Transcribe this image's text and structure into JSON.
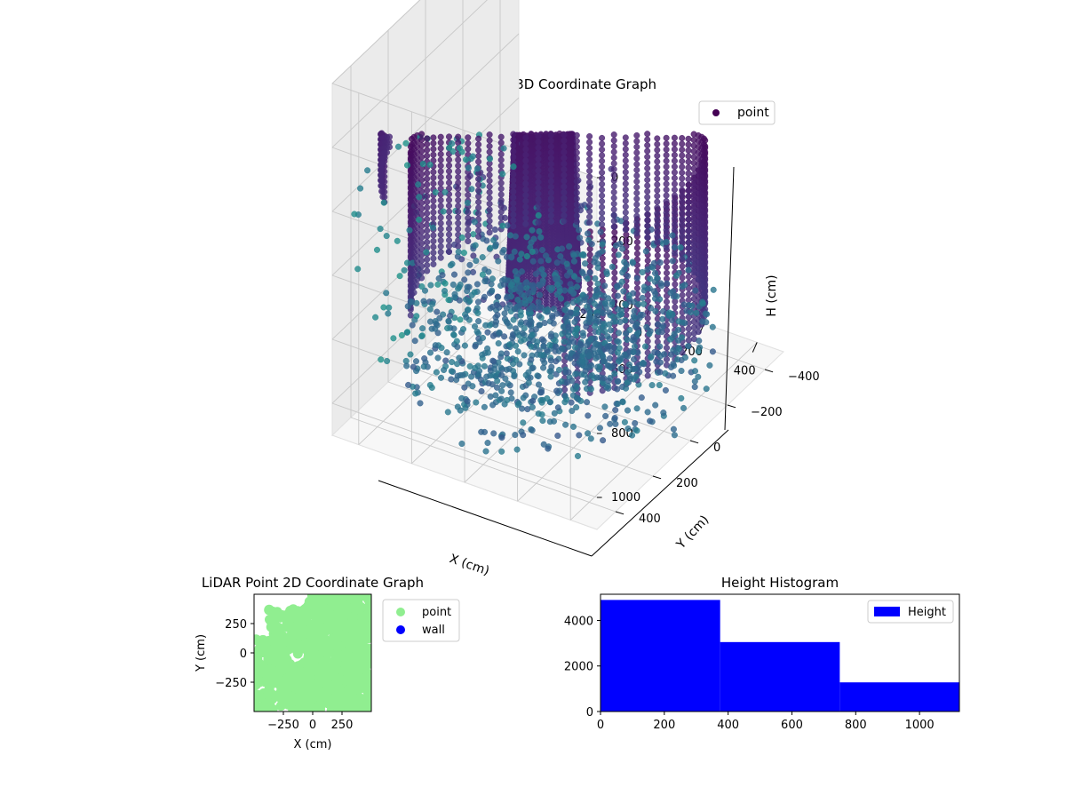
{
  "chart_data": [
    {
      "type": "scatter3d",
      "title": "LiDAR Point 3D Coordinate Graph",
      "xlabel": "X (cm)",
      "ylabel": "Y (cm)",
      "zlabel": "H (cm)",
      "xlim": [
        -500,
        500
      ],
      "ylim": [
        -500,
        500
      ],
      "zlim": [
        0,
        1100
      ],
      "z_inverted": true,
      "x_ticks": [
        -400,
        -200,
        0,
        200,
        400
      ],
      "y_ticks": [
        -400,
        -200,
        0,
        200,
        400
      ],
      "z_ticks": [
        0,
        200,
        400,
        600,
        800,
        1000
      ],
      "x_tick_labels": [
        "−400",
        "−200",
        "0",
        "200",
        "400"
      ],
      "y_tick_labels": [
        "−400",
        "−200",
        "0",
        "200",
        "400"
      ],
      "z_tick_labels": [
        "0",
        "200",
        "400",
        "600",
        "800",
        "1000"
      ],
      "grid": true,
      "legend_position": "top-right",
      "series": [
        {
          "name": "point",
          "colormap": "viridis",
          "marker_color": "#440154",
          "structures": {
            "wall": {
              "angle_from_deg": -55,
              "angle_to_deg": 215,
              "radius": 470,
              "h_top": 330,
              "h_bottom": 850
            },
            "column": {
              "cx": 30,
              "cy": 120,
              "radius_top": 80,
              "radius_bottom": 110,
              "h_top": 0,
              "h_bottom": 700
            },
            "floor": {
              "h_from": 780,
              "h_to": 1050
            }
          }
        }
      ]
    },
    {
      "type": "scatter",
      "title": "LiDAR Point 2D Coordinate Graph",
      "xlabel": "X (cm)",
      "ylabel": "Y (cm)",
      "xlim": [
        -500,
        500
      ],
      "ylim": [
        -500,
        500
      ],
      "x_ticks": [
        -250,
        0,
        250
      ],
      "y_ticks": [
        -250,
        0,
        250
      ],
      "x_tick_labels": [
        "−250",
        "0",
        "250"
      ],
      "y_tick_labels": [
        "−250",
        "0",
        "250"
      ],
      "legend_position": "outside-right",
      "series": [
        {
          "name": "point",
          "color": "#90ee90"
        },
        {
          "name": "wall",
          "color": "#0000ff"
        }
      ]
    },
    {
      "type": "histogram",
      "title": "Height Histogram",
      "xlim": [
        0,
        1125
      ],
      "ylim": [
        0,
        5150
      ],
      "x_ticks": [
        0,
        200,
        400,
        600,
        800,
        1000
      ],
      "y_ticks": [
        0,
        2000,
        4000
      ],
      "bins": [
        {
          "from": 0,
          "to": 375,
          "count": 4900
        },
        {
          "from": 375,
          "to": 750,
          "count": 3050
        },
        {
          "from": 750,
          "to": 1125,
          "count": 1280
        }
      ],
      "legend_position": "top-right",
      "series": [
        {
          "name": "Height",
          "color": "#0000ff"
        }
      ]
    }
  ]
}
